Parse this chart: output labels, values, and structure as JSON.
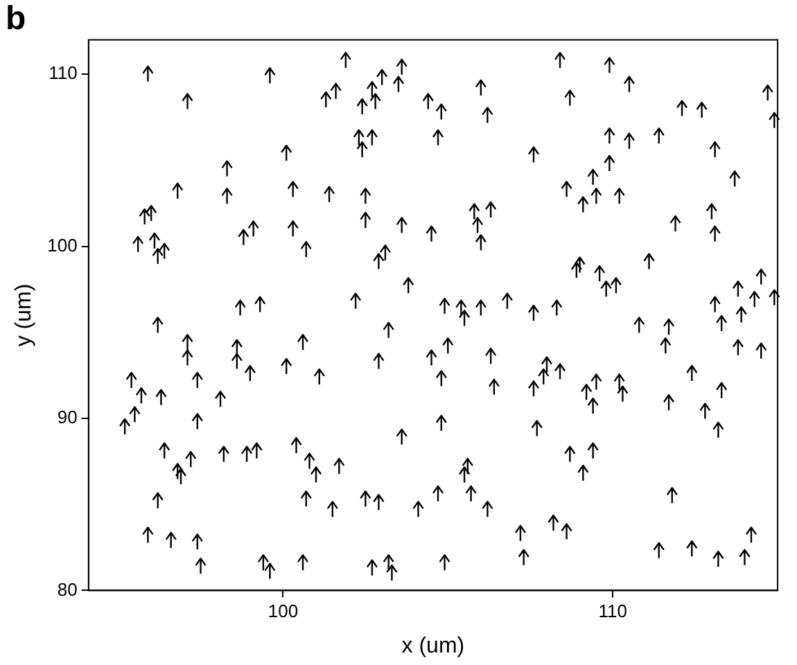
{
  "chart_data": {
    "type": "scatter",
    "title": "b",
    "xlabel": "x (um)",
    "ylabel": "y (um)",
    "xlim": [
      94.1,
      115.0
    ],
    "ylim": [
      80,
      112
    ],
    "xticks": [
      100,
      110
    ],
    "yticks": [
      80,
      90,
      100,
      110
    ],
    "grid": false,
    "legend": false,
    "series": [
      {
        "color": "#000000",
        "x": [
          95.9,
          97.1,
          99.6,
          100.1,
          98.3,
          98.3,
          96.8,
          100.3,
          95.8,
          96.0,
          95.6,
          96.1,
          96.2,
          96.4,
          98.8,
          99.1,
          100.3,
          100.7,
          98.7,
          99.3,
          101.9,
          101.3,
          101.6,
          102.7,
          103.0,
          103.6,
          102.8,
          103.5,
          102.4,
          102.3,
          102.4,
          102.7,
          104.4,
          104.8,
          104.7,
          106.0,
          106.2,
          107.6,
          101.4,
          102.5,
          102.5,
          103.6,
          104.5,
          105.8,
          106.3,
          105.9,
          106.0,
          102.9,
          103.1,
          103.8,
          108.4,
          109.9,
          110.5,
          108.7,
          112.1,
          112.7,
          114.7,
          114.9,
          109.9,
          110.5,
          111.4,
          113.1,
          109.9,
          109.4,
          108.6,
          109.1,
          109.5,
          110.2,
          113.7,
          111.9,
          113.0,
          113.1,
          108.9,
          109.0,
          109.6,
          109.8,
          110.1,
          111.1,
          113.8,
          114.5,
          96.2,
          97.1,
          97.1,
          98.6,
          98.6,
          99.0,
          100.6,
          100.1,
          101.1,
          95.4,
          95.7,
          96.3,
          97.4,
          98.1,
          95.5,
          95.2,
          97.4,
          96.4,
          97.2,
          96.8,
          96.9,
          98.2,
          98.9,
          99.2,
          100.4,
          100.8,
          101.0,
          100.7,
          96.2,
          95.9,
          96.6,
          97.4,
          97.5,
          99.4,
          99.6,
          100.6,
          103.2,
          102.2,
          104.9,
          105.5,
          106.0,
          105.4,
          106.8,
          107.6,
          102.9,
          104.5,
          105.0,
          104.8,
          106.3,
          106.4,
          107.9,
          107.6,
          104.8,
          103.6,
          107.7,
          101.7,
          101.5,
          102.5,
          102.9,
          104.1,
          104.7,
          105.5,
          105.6,
          105.7,
          106.2,
          107.2,
          107.3,
          102.7,
          103.2,
          103.3,
          104.9,
          108.3,
          110.8,
          111.6,
          111.7,
          113.3,
          113.8,
          113.9,
          114.5,
          114.3,
          108.4,
          109.2,
          109.5,
          109.4,
          110.2,
          110.3,
          111.7,
          112.4,
          113.3,
          112.8,
          113.2,
          108.0,
          108.7,
          109.4,
          109.1,
          111.8,
          108.2,
          108.6,
          111.4,
          112.4,
          113.2,
          114.0,
          114.2,
          113.1,
          114.9
        ],
        "values": [
          110.1,
          108.5,
          110.0,
          105.5,
          104.6,
          103.0,
          103.3,
          103.4,
          101.8,
          102.0,
          100.2,
          100.4,
          99.5,
          99.8,
          100.6,
          101.1,
          101.1,
          99.9,
          96.5,
          96.7,
          110.9,
          108.6,
          109.1,
          109.2,
          109.9,
          110.5,
          108.5,
          109.5,
          108.2,
          106.4,
          105.7,
          106.4,
          108.5,
          107.9,
          106.4,
          109.3,
          107.7,
          105.4,
          103.1,
          103.0,
          101.6,
          101.3,
          100.8,
          102.1,
          102.2,
          101.3,
          100.3,
          99.2,
          99.7,
          97.8,
          110.9,
          110.6,
          109.5,
          108.7,
          108.1,
          108.0,
          109.0,
          107.4,
          106.5,
          106.2,
          106.5,
          105.7,
          104.9,
          104.1,
          103.4,
          102.5,
          103.0,
          103.0,
          104.0,
          101.4,
          102.1,
          100.8,
          98.7,
          99.0,
          98.5,
          97.6,
          97.8,
          99.2,
          97.6,
          98.3,
          95.5,
          94.5,
          93.6,
          94.2,
          93.4,
          92.7,
          94.5,
          93.1,
          92.5,
          92.3,
          91.4,
          91.3,
          92.3,
          91.2,
          90.3,
          89.6,
          89.9,
          88.2,
          87.7,
          87.0,
          86.7,
          88.0,
          88.0,
          88.2,
          88.5,
          87.6,
          86.8,
          85.4,
          85.3,
          83.3,
          83.0,
          82.9,
          81.5,
          81.7,
          81.2,
          81.7,
          95.2,
          96.9,
          96.6,
          95.9,
          96.5,
          96.5,
          96.9,
          96.2,
          93.4,
          93.6,
          94.3,
          92.4,
          93.7,
          91.9,
          92.5,
          91.8,
          89.8,
          89.0,
          89.5,
          87.3,
          84.8,
          85.4,
          85.2,
          84.8,
          85.7,
          86.8,
          87.3,
          85.7,
          84.8,
          83.4,
          82.0,
          81.4,
          81.7,
          81.1,
          81.7,
          96.5,
          95.5,
          94.3,
          95.4,
          95.6,
          94.2,
          96.1,
          94.0,
          97.0,
          92.8,
          91.6,
          92.2,
          90.8,
          92.2,
          91.5,
          91.0,
          92.7,
          91.7,
          90.5,
          89.4,
          93.2,
          88.0,
          88.2,
          86.9,
          85.6,
          84.0,
          83.5,
          82.4,
          82.5,
          81.9,
          82.0,
          83.3,
          96.7,
          97.1
        ]
      }
    ]
  }
}
